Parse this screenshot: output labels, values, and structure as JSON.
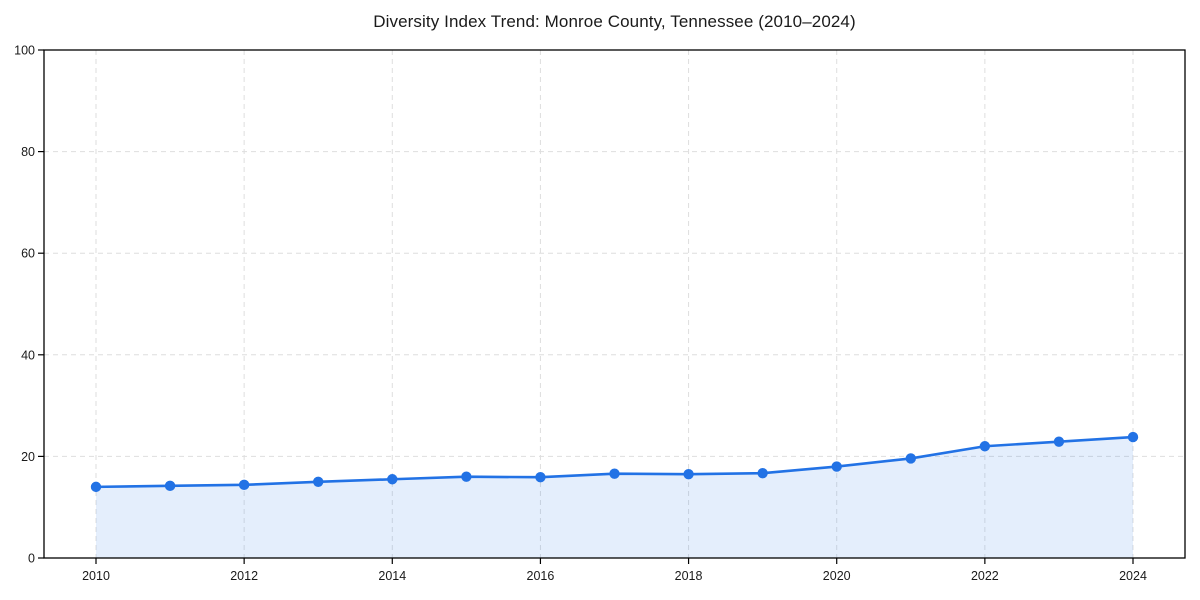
{
  "page": {
    "title": "Diversity Index Trend: Monroe County, Tennessee (2010–2024)"
  },
  "chart_data": {
    "type": "area",
    "title": "Diversity Index Trend: Monroe County, Tennessee (2010–2024)",
    "x": [
      2010,
      2011,
      2012,
      2013,
      2014,
      2015,
      2016,
      2017,
      2018,
      2019,
      2020,
      2021,
      2022,
      2023,
      2024
    ],
    "series": [
      {
        "name": "Diversity Index",
        "values": [
          14.0,
          14.2,
          14.4,
          15.0,
          15.5,
          16.0,
          15.9,
          16.6,
          16.5,
          16.7,
          18.0,
          19.6,
          22.0,
          22.9,
          23.8
        ]
      }
    ],
    "xlabel": "",
    "ylabel": "",
    "ylim": [
      0,
      100
    ],
    "y_ticks": [
      0,
      20,
      40,
      60,
      80,
      100
    ],
    "y_tick_labels": [
      "0",
      "20",
      "40",
      "60",
      "80",
      "100"
    ],
    "x_ticks": [
      2010,
      2012,
      2014,
      2016,
      2018,
      2020,
      2022,
      2024
    ],
    "x_tick_labels": [
      "2010",
      "2012",
      "2014",
      "2016",
      "2018",
      "2020",
      "2022",
      "2024"
    ],
    "grid": true,
    "grid_style": "dashed",
    "legend_position": "none",
    "line_color": "#2272e5",
    "marker_color": "#2272e5",
    "fill_color": "#2272e5",
    "fill_opacity": 0.12,
    "grid_color": "#dedede",
    "spine_color": "#000000",
    "background_color": "#ffffff"
  }
}
